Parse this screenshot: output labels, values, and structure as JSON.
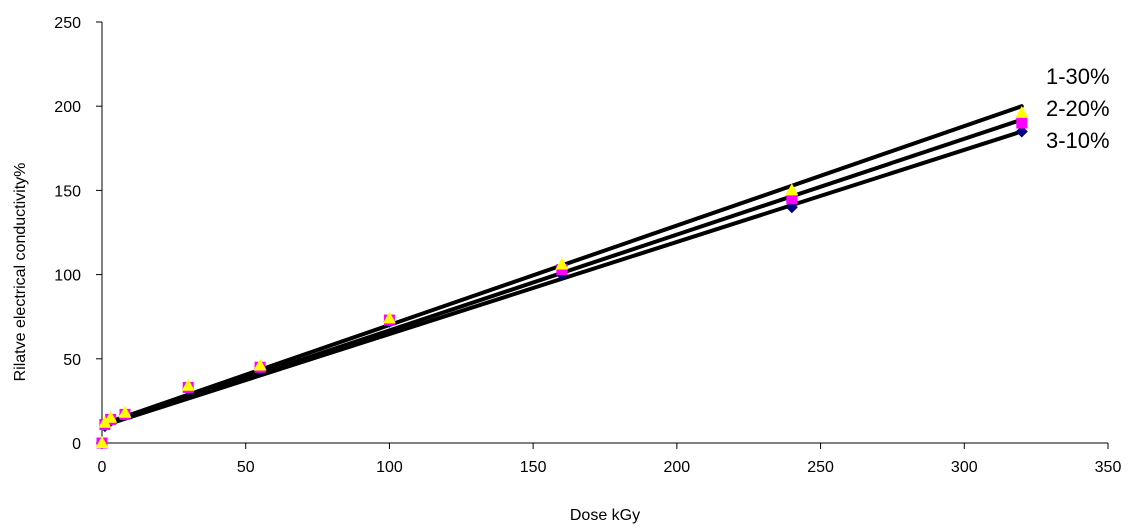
{
  "chart_data": {
    "type": "scatter",
    "title": "",
    "xlabel": "Dose kGy",
    "ylabel": "Rilatve electrical conductivity%",
    "xlim": [
      0,
      350
    ],
    "ylim": [
      0,
      250
    ],
    "x_ticks": [
      0,
      50,
      100,
      150,
      200,
      250,
      300,
      350
    ],
    "y_ticks": [
      0,
      50,
      100,
      150,
      200,
      250
    ],
    "grid": false,
    "legend": "none",
    "x": [
      0,
      1,
      3,
      8,
      30,
      55,
      100,
      160,
      240,
      320
    ],
    "series": [
      {
        "color": "#000080",
        "marker": "diamond",
        "values": [
          0,
          10,
          13,
          17,
          32,
          44,
          72,
          100,
          140,
          185
        ],
        "trendline": {
          "x": [
            0,
            320
          ],
          "y": [
            10,
            185
          ]
        }
      },
      {
        "color": "#FF00FF",
        "marker": "square",
        "values": [
          0,
          11,
          14,
          17,
          33,
          45,
          73,
          103,
          145,
          190
        ],
        "trendline": {
          "x": [
            0,
            320
          ],
          "y": [
            10,
            192
          ]
        }
      },
      {
        "color": "#FFFF00",
        "marker": "triangle",
        "values": [
          0,
          12,
          15,
          18,
          34,
          46,
          74,
          106,
          150,
          196
        ],
        "trendline": {
          "x": [
            0,
            320
          ],
          "y": [
            11,
            200
          ]
        }
      }
    ],
    "annotations": [
      "1-30%",
      "2-20%",
      "3-10%"
    ]
  }
}
